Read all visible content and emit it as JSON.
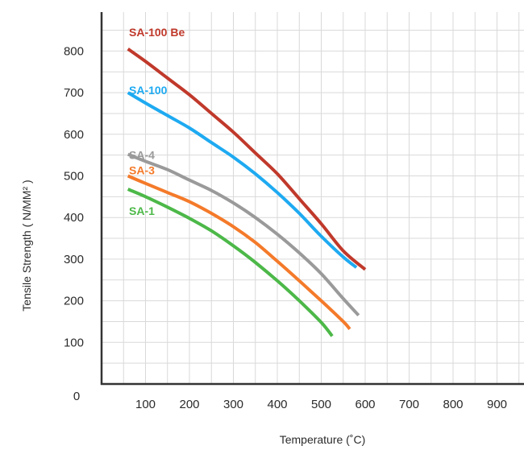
{
  "chart_data": {
    "type": "line",
    "title": "",
    "xlabel": "Temperature (˚C)",
    "ylabel": "Tensile Strength ( N/MM² )",
    "origin_label": "0",
    "xlim": [
      0,
      1000
    ],
    "ylim": [
      0,
      850
    ],
    "x_ticks": [
      100,
      200,
      300,
      400,
      500,
      600,
      700,
      800,
      900
    ],
    "y_ticks": [
      100,
      200,
      300,
      400,
      500,
      600,
      700,
      800
    ],
    "grid": true,
    "legend": "inline labels at left of each curve",
    "series": [
      {
        "name": "SA-100 Be",
        "color": "#c0392b",
        "x": [
          60,
          100,
          150,
          200,
          250,
          300,
          350,
          400,
          450,
          500,
          550,
          600
        ],
        "y": [
          805,
          775,
          735,
          695,
          650,
          605,
          555,
          505,
          445,
          385,
          320,
          275
        ]
      },
      {
        "name": "SA-100",
        "color": "#1eaaf1",
        "x": [
          60,
          100,
          150,
          200,
          250,
          300,
          350,
          400,
          450,
          500,
          550,
          580
        ],
        "y": [
          700,
          675,
          645,
          615,
          580,
          545,
          505,
          460,
          410,
          355,
          305,
          280
        ]
      },
      {
        "name": "SA-4",
        "color": "#9a9a9a",
        "x": [
          60,
          100,
          150,
          200,
          250,
          300,
          350,
          400,
          450,
          500,
          550,
          585
        ],
        "y": [
          552,
          535,
          515,
          490,
          465,
          435,
          400,
          360,
          315,
          265,
          205,
          165
        ]
      },
      {
        "name": "SA-3",
        "color": "#f47a2a",
        "x": [
          60,
          100,
          150,
          200,
          250,
          300,
          350,
          400,
          450,
          500,
          550,
          565
        ],
        "y": [
          500,
          482,
          460,
          438,
          410,
          378,
          340,
          295,
          248,
          200,
          150,
          132
        ]
      },
      {
        "name": "SA-1",
        "color": "#4cb848",
        "x": [
          60,
          100,
          150,
          200,
          250,
          300,
          350,
          400,
          450,
          500,
          525
        ],
        "y": [
          468,
          450,
          425,
          398,
          368,
          332,
          292,
          248,
          200,
          148,
          115
        ]
      }
    ]
  }
}
